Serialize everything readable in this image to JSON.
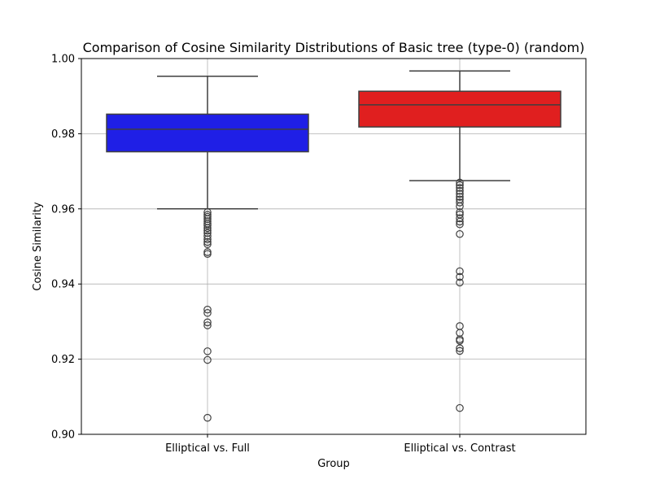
{
  "chart_data": {
    "type": "box",
    "title": "Comparison of Cosine Similarity Distributions of Basic tree (type-0) (random)",
    "xlabel": "Group",
    "ylabel": "Cosine Similarity",
    "ylim": [
      0.9,
      1.0
    ],
    "yticks": [
      0.9,
      0.92,
      0.94,
      0.96,
      0.98,
      1.0
    ],
    "ytick_labels": [
      "0.90",
      "0.92",
      "0.94",
      "0.96",
      "0.98",
      "1.00"
    ],
    "grid": true,
    "categories": [
      "Elliptical vs. Full",
      "Elliptical vs. Contrast"
    ],
    "boxes": [
      {
        "label": "Elliptical vs. Full",
        "color": "#1f1fe6",
        "whisker_low": 0.96,
        "q1": 0.9752,
        "median": 0.9812,
        "q3": 0.9852,
        "whisker_high": 0.9953,
        "outliers": [
          0.9591,
          0.9584,
          0.9579,
          0.9573,
          0.9567,
          0.9561,
          0.9556,
          0.9549,
          0.9542,
          0.9536,
          0.9528,
          0.9519,
          0.9512,
          0.9506,
          0.9485,
          0.948,
          0.9332,
          0.9323,
          0.9298,
          0.929,
          0.9221,
          0.9198,
          0.9044
        ]
      },
      {
        "label": "Elliptical vs. Contrast",
        "color": "#e01f1f",
        "whisker_low": 0.9675,
        "q1": 0.9818,
        "median": 0.9877,
        "q3": 0.9913,
        "whisker_high": 0.9967,
        "outliers": [
          0.967,
          0.9663,
          0.9656,
          0.9648,
          0.964,
          0.9632,
          0.9625,
          0.9617,
          0.9607,
          0.9591,
          0.9585,
          0.9575,
          0.9566,
          0.9559,
          0.9533,
          0.9434,
          0.9419,
          0.9404,
          0.9288,
          0.927,
          0.9253,
          0.9249,
          0.9229,
          0.9222,
          0.907
        ]
      }
    ]
  }
}
